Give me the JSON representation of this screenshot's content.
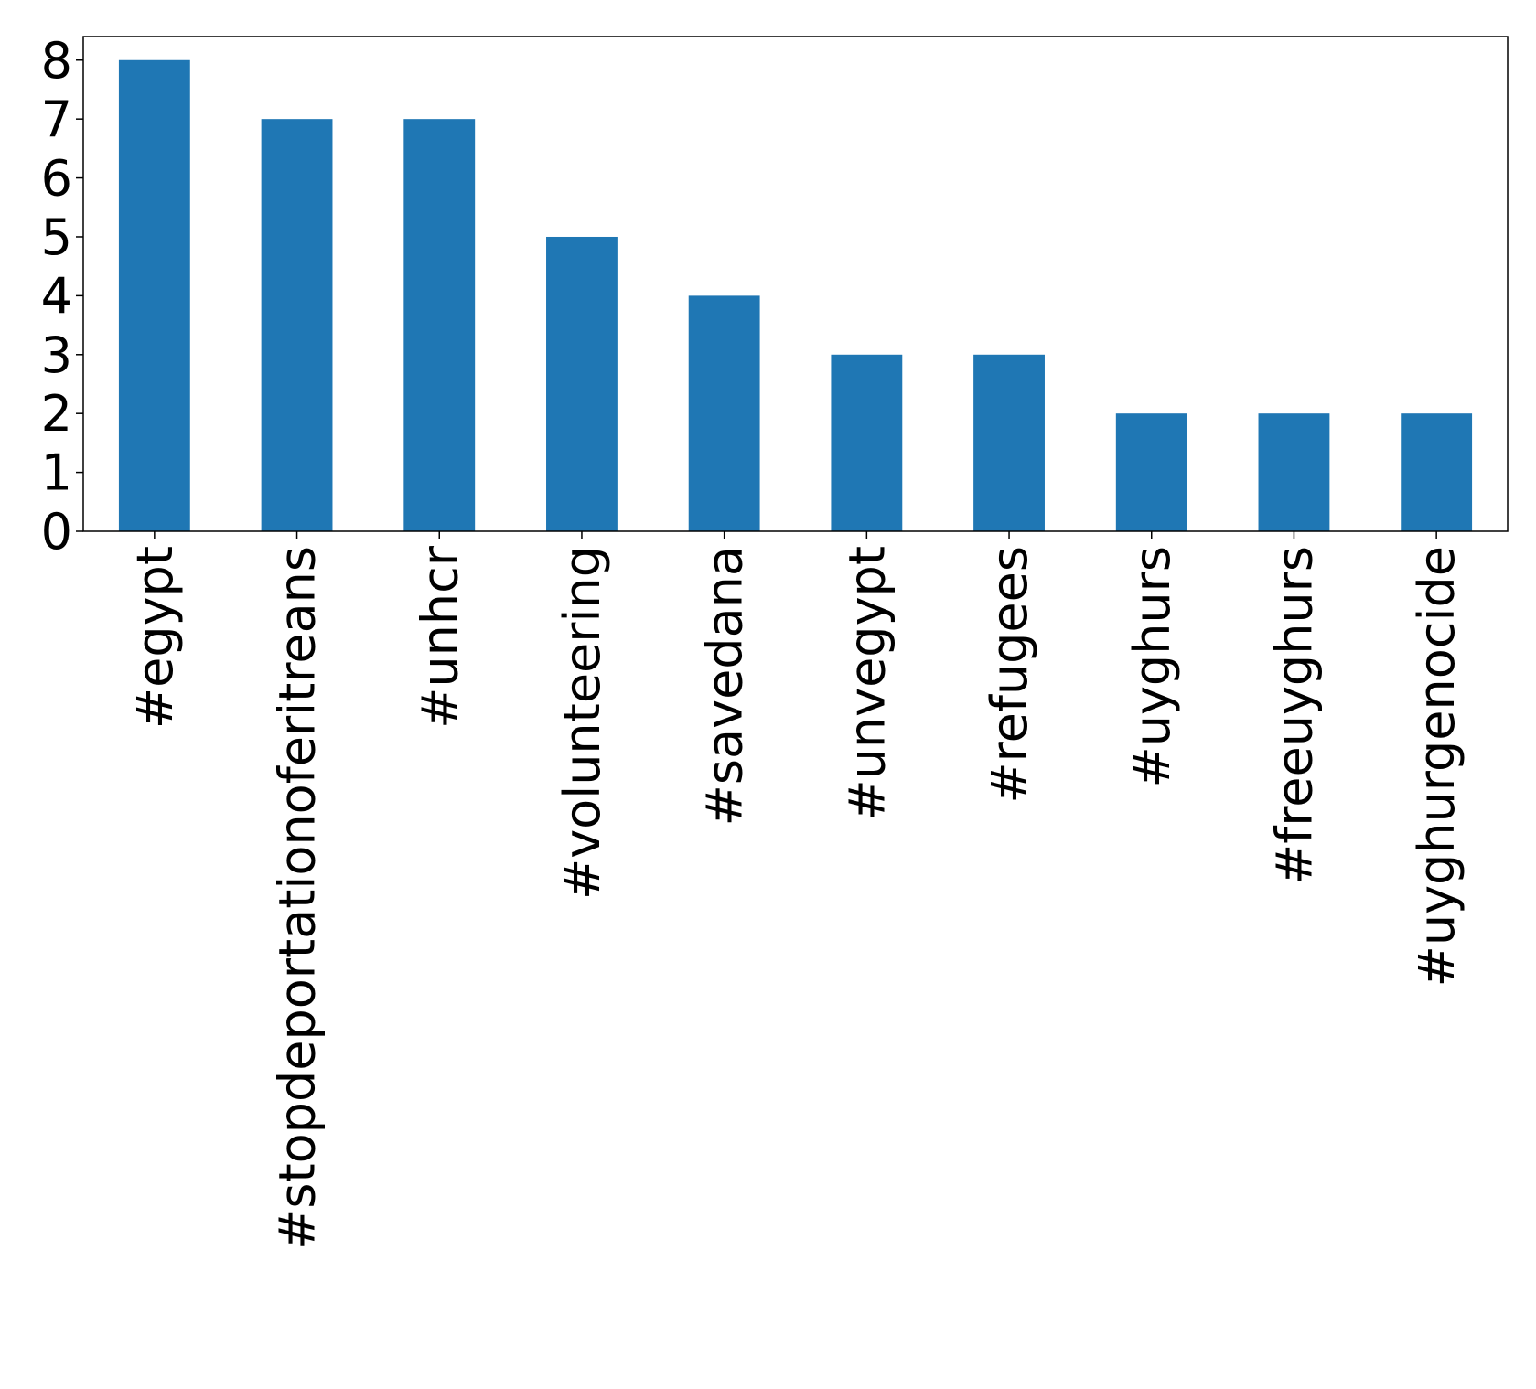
{
  "chart_data": {
    "type": "bar",
    "categories": [
      "#egypt",
      "#stopdeportationoferitreans",
      "#unhcr",
      "#volunteering",
      "#savedana",
      "#unvegypt",
      "#refugees",
      "#uyghurs",
      "#freeuyghurs",
      "#uyghurgenocide"
    ],
    "values": [
      8,
      7,
      7,
      5,
      4,
      3,
      3,
      2,
      2,
      2
    ],
    "color": "#1f77b4",
    "ylim": [
      0,
      8.4
    ],
    "yticks": [
      0,
      1,
      2,
      3,
      4,
      5,
      6,
      7,
      8
    ],
    "grid": false
  }
}
